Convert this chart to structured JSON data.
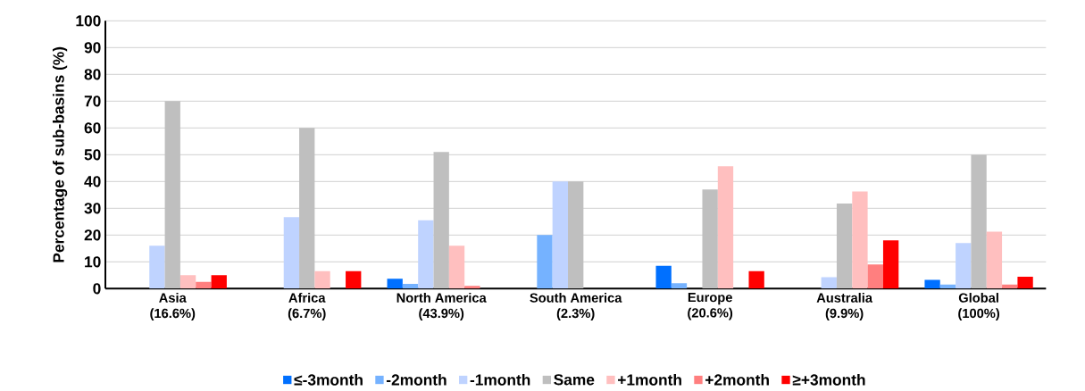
{
  "chart_data": {
    "type": "bar",
    "ylabel": "Percentage of sub-basins (%)",
    "categories": [
      "Asia\n(16.6%)",
      "Africa\n(6.7%)",
      "North America\n(43.9%)",
      "South America\n(2.3%)",
      "Europe\n(20.6%)",
      "Australia\n(9.9%)",
      "Global\n(100%)"
    ],
    "series": [
      {
        "name": "≤-3month",
        "color": "#0070ff",
        "values": [
          0,
          0,
          3.7,
          0,
          8.5,
          0,
          3.3
        ]
      },
      {
        "name": "-2month",
        "color": "#75b2ff",
        "values": [
          0,
          0,
          1.8,
          20,
          2,
          0,
          1.5
        ]
      },
      {
        "name": "-1month",
        "color": "#bfd3ff",
        "values": [
          16,
          26.7,
          25.5,
          40,
          0,
          4.3,
          17
        ]
      },
      {
        "name": "Same",
        "color": "#bfbfbf",
        "values": [
          70,
          60,
          51,
          40,
          37,
          31.8,
          50
        ]
      },
      {
        "name": "+1month",
        "color": "#ffbfbf",
        "values": [
          5,
          6.5,
          16,
          0,
          45.7,
          36.3,
          21.3
        ]
      },
      {
        "name": "+2month",
        "color": "#ff7f7f",
        "values": [
          2.5,
          0,
          1,
          0,
          0,
          9,
          1.5
        ]
      },
      {
        "name": "≥+3month",
        "color": "#ff0000",
        "values": [
          5,
          6.5,
          0,
          0,
          6.5,
          18,
          4.4
        ]
      }
    ],
    "ylim": [
      0,
      100
    ],
    "yticks": [
      0,
      10,
      20,
      30,
      40,
      50,
      60,
      70,
      80,
      90,
      100
    ],
    "grid": "y",
    "legend": "bottom"
  }
}
